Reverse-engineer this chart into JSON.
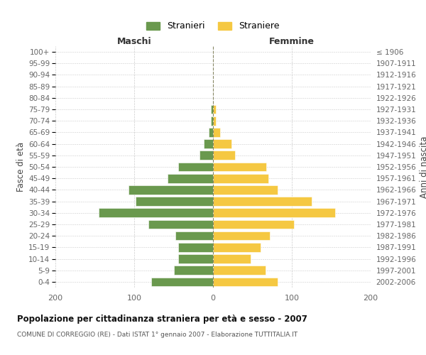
{
  "age_groups": [
    "100+",
    "95-99",
    "90-94",
    "85-89",
    "80-84",
    "75-79",
    "70-74",
    "65-69",
    "60-64",
    "55-59",
    "50-54",
    "45-49",
    "40-44",
    "35-39",
    "30-34",
    "25-29",
    "20-24",
    "15-19",
    "10-14",
    "5-9",
    "0-4"
  ],
  "birth_years": [
    "≤ 1906",
    "1907-1911",
    "1912-1916",
    "1917-1921",
    "1922-1926",
    "1927-1931",
    "1932-1936",
    "1937-1941",
    "1942-1946",
    "1947-1951",
    "1952-1956",
    "1957-1961",
    "1962-1966",
    "1967-1971",
    "1972-1976",
    "1977-1981",
    "1982-1986",
    "1987-1991",
    "1992-1996",
    "1997-2001",
    "2002-2006"
  ],
  "maschi": [
    0,
    0,
    0,
    0,
    0,
    3,
    3,
    5,
    12,
    17,
    44,
    58,
    107,
    98,
    145,
    82,
    48,
    44,
    44,
    50,
    78
  ],
  "femmine": [
    0,
    0,
    0,
    0,
    0,
    4,
    4,
    9,
    23,
    28,
    68,
    70,
    82,
    125,
    155,
    103,
    72,
    60,
    48,
    67,
    82
  ],
  "male_color": "#6a994e",
  "female_color": "#f5c842",
  "male_label": "Stranieri",
  "female_label": "Straniere",
  "title": "Popolazione per cittadinanza straniera per età e sesso - 2007",
  "subtitle": "COMUNE DI CORREGGIO (RE) - Dati ISTAT 1° gennaio 2007 - Elaborazione TUTTITALIA.IT",
  "xlabel_left": "Maschi",
  "xlabel_right": "Femmine",
  "ylabel_left": "Fasce di età",
  "ylabel_right": "Anni di nascita",
  "xlim": 200,
  "background_color": "#ffffff",
  "grid_color": "#cccccc"
}
